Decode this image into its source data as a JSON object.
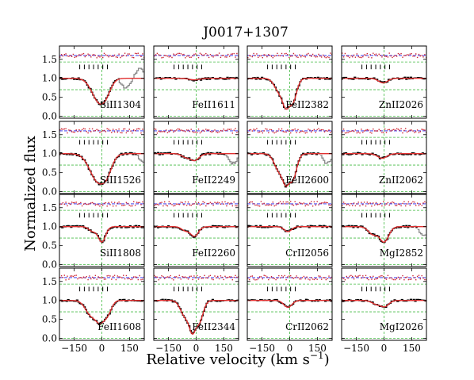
{
  "chart_data": {
    "type": "line",
    "title": "J0017+1307",
    "xlabel": "Relative velocity (km s",
    "xlabel_superscript": "−1",
    "xlabel_close": ")",
    "ylabel": "Normalized flux",
    "xlim": [
      -230,
      230
    ],
    "ylim": [
      -0.05,
      1.85
    ],
    "x_ticks": [
      -150,
      0,
      150
    ],
    "x_tick_labels": [
      "−150",
      "0",
      "150"
    ],
    "y_ticks": [
      0.0,
      0.5,
      1.0,
      1.5
    ],
    "y_tick_labels": [
      "0.0",
      "0.5",
      "1.0",
      "1.5"
    ],
    "component_velocities": [
      -120,
      -95,
      -70,
      -45,
      -20,
      5,
      30
    ],
    "colors": {
      "data": "#000000",
      "masked": "#888888",
      "model": "#e03030",
      "zero_level": "#2222ee",
      "residual": "#cc2233",
      "guide": "#44bb44",
      "component": "#00bbbb"
    },
    "panels": [
      {
        "label": "SiII1304",
        "row": 0,
        "col": 0,
        "comps": [
          {
            "v": -15,
            "d": 0.55,
            "w": 40
          },
          {
            "v": 10,
            "d": 0.35,
            "w": 30
          }
        ],
        "mask_right": 90
      },
      {
        "label": "FeII1611",
        "row": 0,
        "col": 1,
        "comps": [
          {
            "v": -10,
            "d": 0.04,
            "w": 30
          }
        ],
        "mask_right": null
      },
      {
        "label": "FeII2382",
        "row": 0,
        "col": 2,
        "comps": [
          {
            "v": -60,
            "d": 0.3,
            "w": 25
          },
          {
            "v": -20,
            "d": 0.75,
            "w": 22
          },
          {
            "v": 15,
            "d": 0.6,
            "w": 22
          }
        ],
        "mask_right": null
      },
      {
        "label": "ZnII2026",
        "row": 0,
        "col": 3,
        "comps": [
          {
            "v": -5,
            "d": 0.12,
            "w": 25
          }
        ],
        "mask_right": null
      },
      {
        "label": "SiII1526",
        "row": 1,
        "col": 0,
        "comps": [
          {
            "v": -20,
            "d": 0.7,
            "w": 45
          },
          {
            "v": 15,
            "d": 0.5,
            "w": 30
          }
        ],
        "mask_right": 190
      },
      {
        "label": "FeII2249",
        "row": 1,
        "col": 1,
        "comps": [
          {
            "v": -60,
            "d": 0.08,
            "w": 20
          },
          {
            "v": -10,
            "d": 0.18,
            "w": 25
          }
        ],
        "mask_right": 160
      },
      {
        "label": "FeII2600",
        "row": 1,
        "col": 2,
        "comps": [
          {
            "v": -60,
            "d": 0.4,
            "w": 25
          },
          {
            "v": -20,
            "d": 0.8,
            "w": 22
          },
          {
            "v": 15,
            "d": 0.65,
            "w": 22
          }
        ],
        "mask_right": 165
      },
      {
        "label": "ZnII2062",
        "row": 1,
        "col": 3,
        "comps": [
          {
            "v": -10,
            "d": 0.12,
            "w": 25
          }
        ],
        "mask_right": null
      },
      {
        "label": "SiII1808",
        "row": 2,
        "col": 0,
        "comps": [
          {
            "v": -50,
            "d": 0.12,
            "w": 20
          },
          {
            "v": 0,
            "d": 0.4,
            "w": 20
          }
        ],
        "mask_right": null
      },
      {
        "label": "FeII2260",
        "row": 2,
        "col": 1,
        "comps": [
          {
            "v": -60,
            "d": 0.1,
            "w": 20
          },
          {
            "v": -10,
            "d": 0.25,
            "w": 22
          }
        ],
        "mask_right": null
      },
      {
        "label": "CrII2056",
        "row": 2,
        "col": 2,
        "comps": [
          {
            "v": -10,
            "d": 0.13,
            "w": 20
          }
        ],
        "mask_right": null
      },
      {
        "label": "MgI2852",
        "row": 2,
        "col": 3,
        "comps": [
          {
            "v": -60,
            "d": 0.2,
            "w": 25
          },
          {
            "v": 0,
            "d": 0.4,
            "w": 25
          }
        ],
        "mask_right": 180
      },
      {
        "label": "FeII1608",
        "row": 3,
        "col": 0,
        "comps": [
          {
            "v": -60,
            "d": 0.35,
            "w": 30
          },
          {
            "v": -10,
            "d": 0.55,
            "w": 28
          },
          {
            "v": 30,
            "d": 0.3,
            "w": 22
          }
        ],
        "mask_right": null
      },
      {
        "label": "FeII2344",
        "row": 3,
        "col": 1,
        "comps": [
          {
            "v": -60,
            "d": 0.4,
            "w": 25
          },
          {
            "v": -20,
            "d": 0.85,
            "w": 20
          },
          {
            "v": 15,
            "d": 0.55,
            "w": 22
          }
        ],
        "mask_right": null
      },
      {
        "label": "CrII2062",
        "row": 3,
        "col": 2,
        "comps": [
          {
            "v": -10,
            "d": 0.18,
            "w": 22
          }
        ],
        "mask_right": null
      },
      {
        "label": "MgI2026",
        "row": 3,
        "col": 3,
        "comps": [
          {
            "v": -40,
            "d": 0.1,
            "w": 25
          },
          {
            "v": 5,
            "d": 0.15,
            "w": 22
          }
        ],
        "mask_right": null
      }
    ]
  }
}
